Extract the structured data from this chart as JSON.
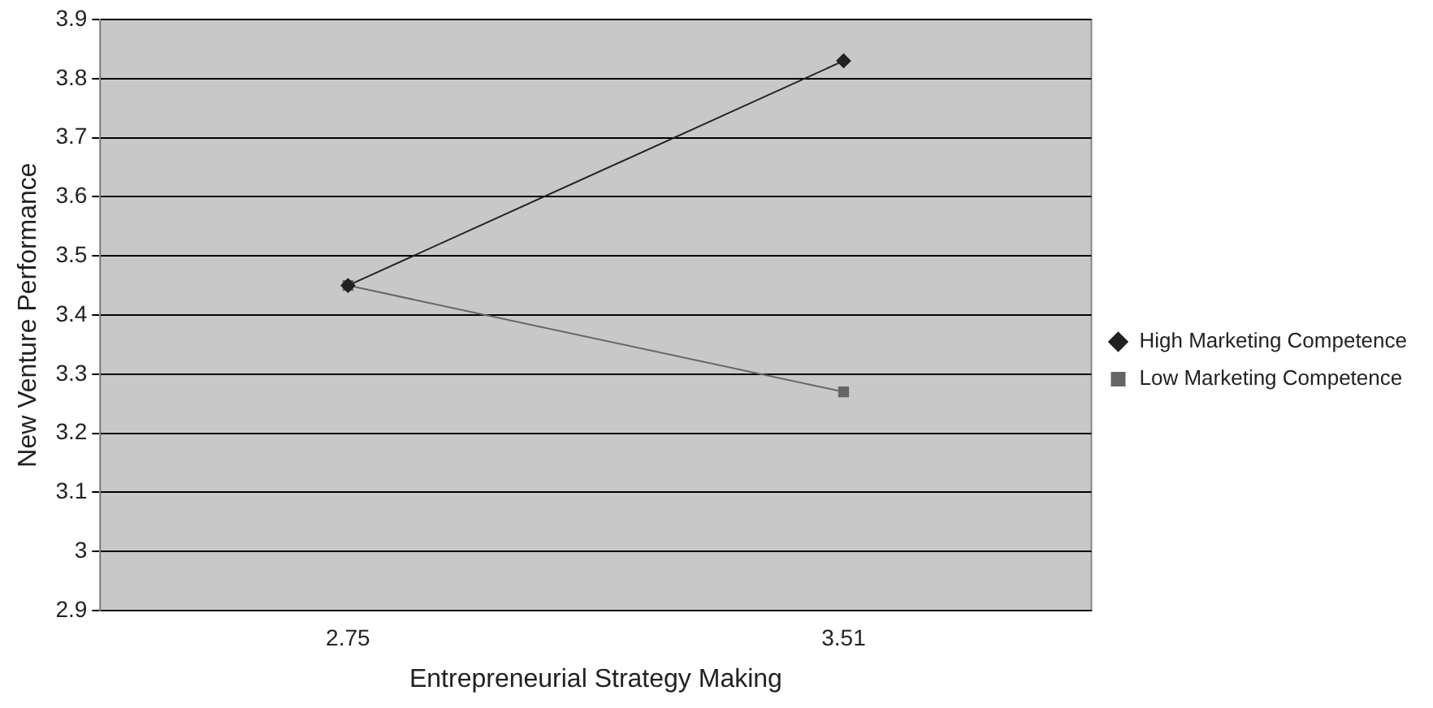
{
  "chart_data": {
    "type": "line",
    "xlabel": "Entrepreneurial Strategy Making",
    "ylabel": "New Venture Performance",
    "categories": [
      "2.75",
      "3.51"
    ],
    "series": [
      {
        "name": "High Marketing Competence",
        "color": "#222222",
        "marker": "diamond",
        "values": [
          3.45,
          3.83
        ]
      },
      {
        "name": "Low Marketing Competence",
        "color": "#666666",
        "marker": "square",
        "values": [
          3.45,
          3.27
        ]
      }
    ],
    "ylim": [
      2.9,
      3.9
    ],
    "yticks": [
      2.9,
      3,
      3.1,
      3.2,
      3.3,
      3.4,
      3.5,
      3.6,
      3.7,
      3.8,
      3.9
    ],
    "grid": "y",
    "legend": "right",
    "line_style": "solid"
  }
}
